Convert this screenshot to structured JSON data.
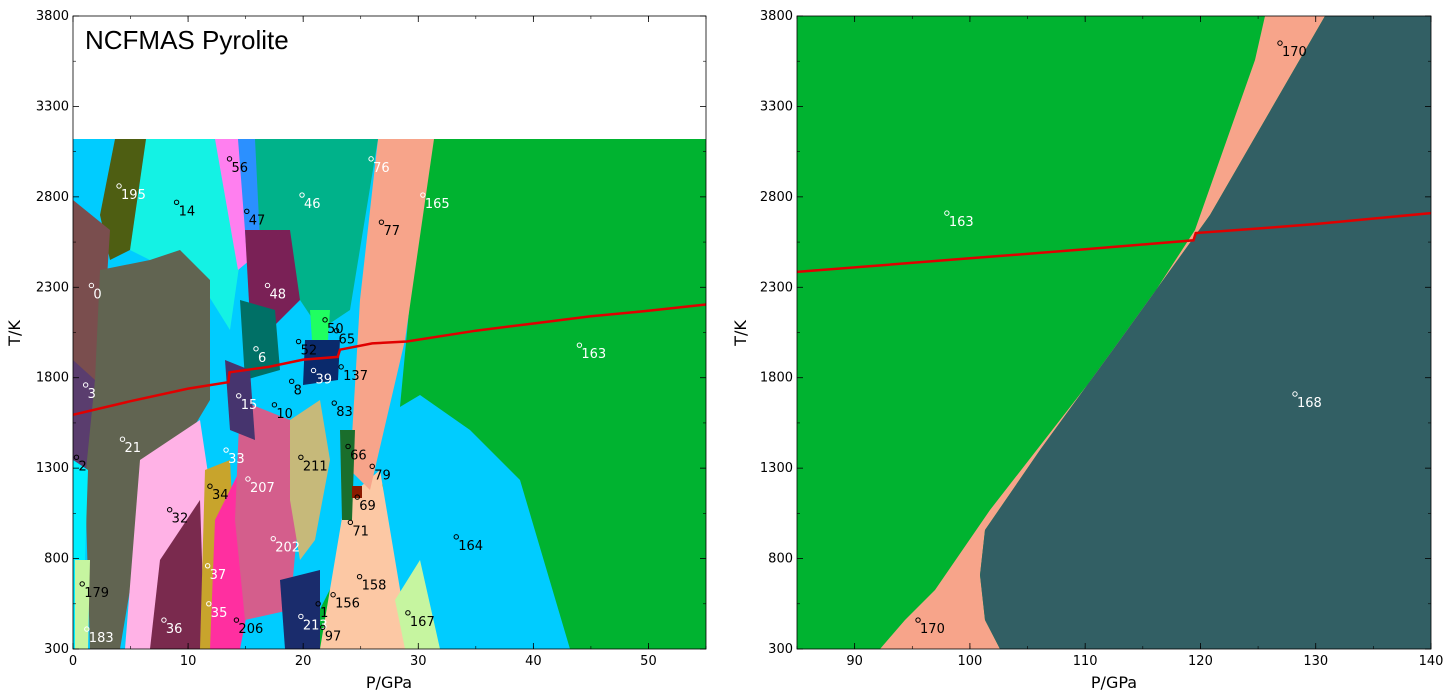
{
  "colors": {
    "panel_left_bg": "#ffffff",
    "phase_main": "#00b330",
    "phase_salmon": "#f7a48a",
    "phase_darkslate": "#325f64",
    "adiabat": "#e00000",
    "phases": {
      "0": "#7a4e4e",
      "3": "#5a3d6e",
      "14": "#14f2e4",
      "195": "#4e5e12",
      "21": "#616451",
      "56": "#ff7fef",
      "47": "#2b90ff",
      "46": "#00b28a",
      "48": "#7a2156",
      "6": "#007066",
      "76": "#00b28a",
      "77": "#f7a48a",
      "165": "#f7a48a",
      "163": "#00b330",
      "50": "#20ff60",
      "65": "#f9c9a8",
      "52": "#c6b97a",
      "39": "#0a2a6c",
      "137": "#f9c9a8",
      "15": "#46346e",
      "10": "#f9c9a8",
      "8": "#c6b97a",
      "83": "#c6b97a",
      "66": "#1a6e2c",
      "33": "#7a6e4a",
      "34": "#9c2a4e",
      "207": "#c8a42c",
      "211": "#c6b97a",
      "79": "#00d4ff",
      "69": "#8b1a00",
      "71": "#1a6e2c",
      "164": "#00ccff",
      "32": "#ffb2e6",
      "202": "#d45e8c",
      "37": "#ff2fa0",
      "158": "#fcc8a4",
      "179": "#c6f5a0",
      "35": "#ff2fa0",
      "36": "#7a2a4e",
      "206": "#ff2fa0",
      "213": "#1a2c6c",
      "156": "#1a2c6c",
      "1": "#1a2c6c",
      "97": "#1a2c6c",
      "183": "#c6f5a0",
      "167": "#c6f5a0",
      "2": "#00f0ff",
      "170": "#f7a48a",
      "168": "#325f64"
    }
  },
  "chart_data": [
    {
      "type": "heatmap",
      "title": "NCFMAS Pyrolite",
      "xlabel": "P/GPa",
      "ylabel": "T/K",
      "xlim": [
        0,
        55
      ],
      "ylim": [
        300,
        3800
      ],
      "data_extent_tmax": 3100,
      "xticks": [
        0,
        10,
        20,
        30,
        40,
        50
      ],
      "yticks": [
        300,
        800,
        1300,
        1800,
        2300,
        2800,
        3300,
        3800
      ],
      "adiabat": {
        "P": [
          0,
          5,
          10,
          13.5,
          13.6,
          17,
          20,
          23,
          23.2,
          26,
          29,
          35,
          40,
          45,
          50,
          55
        ],
        "T": [
          1595,
          1670,
          1740,
          1775,
          1830,
          1860,
          1900,
          1915,
          1955,
          1990,
          2000,
          2060,
          2100,
          2140,
          2170,
          2205
        ]
      },
      "points": [
        {
          "label": "195",
          "P": 4.0,
          "T": 2860,
          "text": "light"
        },
        {
          "label": "14",
          "P": 9.0,
          "T": 2770,
          "text": "dark"
        },
        {
          "label": "56",
          "P": 13.6,
          "T": 3010,
          "text": "dark"
        },
        {
          "label": "47",
          "P": 15.1,
          "T": 2720,
          "text": "dark"
        },
        {
          "label": "46",
          "P": 19.9,
          "T": 2810,
          "text": "light"
        },
        {
          "label": "76",
          "P": 25.9,
          "T": 3010,
          "text": "light"
        },
        {
          "label": "165",
          "P": 30.4,
          "T": 2810,
          "text": "light"
        },
        {
          "label": "77",
          "P": 26.8,
          "T": 2660,
          "text": "dark"
        },
        {
          "label": "0",
          "P": 1.6,
          "T": 2310,
          "text": "light"
        },
        {
          "label": "48",
          "P": 16.9,
          "T": 2310,
          "text": "light"
        },
        {
          "label": "50",
          "P": 21.9,
          "T": 2120,
          "text": "dark"
        },
        {
          "label": "65",
          "P": 22.9,
          "T": 2060,
          "text": "dark"
        },
        {
          "label": "163",
          "P": 44.0,
          "T": 1980,
          "text": "light"
        },
        {
          "label": "52",
          "P": 19.6,
          "T": 2000,
          "text": "dark"
        },
        {
          "label": "6",
          "P": 15.9,
          "T": 1960,
          "text": "light"
        },
        {
          "label": "137",
          "P": 23.3,
          "T": 1860,
          "text": "dark"
        },
        {
          "label": "39",
          "P": 20.9,
          "T": 1840,
          "text": "light"
        },
        {
          "label": "3",
          "P": 1.1,
          "T": 1760,
          "text": "light"
        },
        {
          "label": "8",
          "P": 19.0,
          "T": 1780,
          "text": "dark"
        },
        {
          "label": "15",
          "P": 14.4,
          "T": 1700,
          "text": "light"
        },
        {
          "label": "10",
          "P": 17.5,
          "T": 1650,
          "text": "dark"
        },
        {
          "label": "83",
          "P": 22.7,
          "T": 1660,
          "text": "dark"
        },
        {
          "label": "21",
          "P": 4.3,
          "T": 1460,
          "text": "light"
        },
        {
          "label": "66",
          "P": 23.9,
          "T": 1420,
          "text": "dark"
        },
        {
          "label": "33",
          "P": 13.3,
          "T": 1400,
          "text": "light"
        },
        {
          "label": "2",
          "P": 0.3,
          "T": 1360,
          "text": "dark"
        },
        {
          "label": "211",
          "P": 19.8,
          "T": 1360,
          "text": "dark"
        },
        {
          "label": "79",
          "P": 26.0,
          "T": 1310,
          "text": "dark"
        },
        {
          "label": "34",
          "P": 11.9,
          "T": 1200,
          "text": "dark"
        },
        {
          "label": "207",
          "P": 15.2,
          "T": 1240,
          "text": "light"
        },
        {
          "label": "69",
          "P": 24.7,
          "T": 1140,
          "text": "dark"
        },
        {
          "label": "32",
          "P": 8.4,
          "T": 1070,
          "text": "dark"
        },
        {
          "label": "71",
          "P": 24.1,
          "T": 1000,
          "text": "dark"
        },
        {
          "label": "164",
          "P": 33.3,
          "T": 920,
          "text": "dark"
        },
        {
          "label": "202",
          "P": 17.4,
          "T": 910,
          "text": "light"
        },
        {
          "label": "37",
          "P": 11.7,
          "T": 760,
          "text": "light"
        },
        {
          "label": "158",
          "P": 24.9,
          "T": 700,
          "text": "dark"
        },
        {
          "label": "179",
          "P": 0.8,
          "T": 660,
          "text": "dark"
        },
        {
          "label": "156",
          "P": 22.6,
          "T": 600,
          "text": "dark"
        },
        {
          "label": "35",
          "P": 11.8,
          "T": 550,
          "text": "light"
        },
        {
          "label": "1",
          "P": 21.3,
          "T": 550,
          "text": "dark"
        },
        {
          "label": "213",
          "P": 19.8,
          "T": 480,
          "text": "light"
        },
        {
          "label": "167",
          "P": 29.1,
          "T": 500,
          "text": "dark"
        },
        {
          "label": "36",
          "P": 7.9,
          "T": 460,
          "text": "light"
        },
        {
          "label": "206",
          "P": 14.2,
          "T": 460,
          "text": "dark"
        },
        {
          "label": "97",
          "P": 21.7,
          "T": 420,
          "text": "dark"
        },
        {
          "label": "183",
          "P": 1.2,
          "T": 410,
          "text": "light"
        }
      ]
    },
    {
      "type": "heatmap",
      "xlabel": "P/GPa",
      "ylabel": "T/K",
      "xlim": [
        85,
        140
      ],
      "ylim": [
        300,
        3800
      ],
      "xticks": [
        90,
        100,
        110,
        120,
        130,
        140
      ],
      "yticks": [
        300,
        800,
        1300,
        1800,
        2300,
        2800,
        3300,
        3800
      ],
      "adiabat": {
        "P": [
          85,
          100,
          110,
          119.4,
          119.6,
          125,
          130,
          140
        ],
        "T": [
          2385,
          2460,
          2510,
          2560,
          2600,
          2625,
          2650,
          2710
        ]
      },
      "points": [
        {
          "label": "163",
          "P": 98.0,
          "T": 2710,
          "text": "light"
        },
        {
          "label": "170",
          "P": 126.9,
          "T": 3650,
          "text": "dark"
        },
        {
          "label": "168",
          "P": 128.2,
          "T": 1710,
          "text": "light"
        },
        {
          "label": "170",
          "P": 95.5,
          "T": 460,
          "text": "dark"
        }
      ]
    }
  ]
}
